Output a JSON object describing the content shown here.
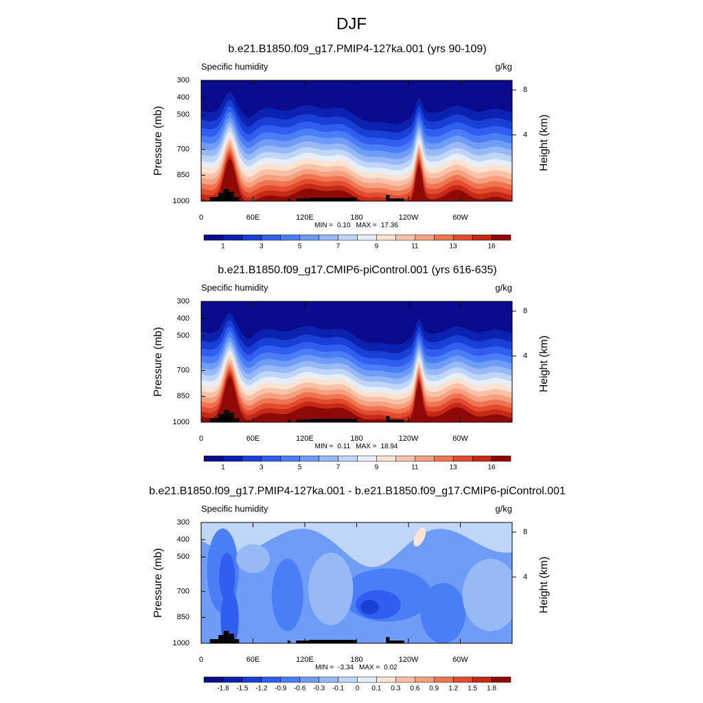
{
  "title": "DJF",
  "chart_data": [
    {
      "type": "contour",
      "title": "b.e21.B1850.f09_g17.PMIP4-127ka.001 (yrs 90-109)",
      "left_title": "Specific humidity",
      "right_title": "g/kg",
      "ylabel": "Pressure (mb)",
      "y2label": "Height (km)",
      "xlim": [
        0,
        360
      ],
      "xticks": [
        0,
        {
          "value": 60,
          "label": "60E"
        },
        {
          "value": 120,
          "label": "120E"
        },
        180,
        {
          "value": 240,
          "label": "120W"
        },
        {
          "value": 300,
          "label": "60W"
        }
      ],
      "ylim": [
        1000,
        300
      ],
      "yticks": [
        300,
        400,
        500,
        700,
        850,
        1000
      ],
      "y2ticks": [
        4,
        8
      ],
      "min_label": "MIN =",
      "min": {
        "value": 0.1,
        "label": "0.10"
      },
      "max_label": "MAX =",
      "max": 17.36,
      "colorbar": {
        "colors": [
          "#0a0a8c",
          "#0b22b0",
          "#1a3fd4",
          "#2f5ef0",
          "#4a7ef7",
          "#6e9cf7",
          "#97baf7",
          "#c0d6f8",
          "#e6eefa",
          "#fbe3d2",
          "#f9c2a8",
          "#f5a07e",
          "#ef7552",
          "#e34b2e",
          "#c52a17",
          "#8f0a06"
        ],
        "labels": [
          1,
          3,
          5,
          7,
          9,
          11,
          13,
          16
        ]
      }
    },
    {
      "type": "contour",
      "title": "b.e21.B1850.f09_g17.CMIP6-piControl.001 (yrs 616-635)",
      "left_title": "Specific humidity",
      "right_title": "g/kg",
      "ylabel": "Pressure (mb)",
      "y2label": "Height (km)",
      "xlim": [
        0,
        360
      ],
      "xticks": [
        0,
        {
          "value": 60,
          "label": "60E"
        },
        {
          "value": 120,
          "label": "120E"
        },
        180,
        {
          "value": 240,
          "label": "120W"
        },
        {
          "value": 300,
          "label": "60W"
        }
      ],
      "ylim": [
        1000,
        300
      ],
      "yticks": [
        300,
        400,
        500,
        700,
        850,
        1000
      ],
      "y2ticks": [
        4,
        8
      ],
      "min_label": "MIN =",
      "min": {
        "value": 0.11,
        "label": "0.11"
      },
      "max_label": "MAX =",
      "max": 18.94,
      "colorbar": {
        "colors": [
          "#0a0a8c",
          "#0b22b0",
          "#1a3fd4",
          "#2f5ef0",
          "#4a7ef7",
          "#6e9cf7",
          "#97baf7",
          "#c0d6f8",
          "#e6eefa",
          "#fbe3d2",
          "#f9c2a8",
          "#f5a07e",
          "#ef7552",
          "#e34b2e",
          "#c52a17",
          "#8f0a06"
        ],
        "labels": [
          1,
          3,
          5,
          7,
          9,
          11,
          13,
          16
        ]
      }
    },
    {
      "type": "contour",
      "title": "b.e21.B1850.f09_g17.PMIP4-127ka.001 - b.e21.B1850.f09_g17.CMIP6-piControl.001",
      "left_title": "Specific humidity",
      "right_title": "g/kg",
      "ylabel": "Pressure (mb)",
      "y2label": "Height (km)",
      "xlim": [
        0,
        360
      ],
      "xticks": [
        0,
        {
          "value": 60,
          "label": "60E"
        },
        {
          "value": 120,
          "label": "120E"
        },
        180,
        {
          "value": 240,
          "label": "120W"
        },
        {
          "value": 300,
          "label": "60W"
        }
      ],
      "ylim": [
        1000,
        300
      ],
      "yticks": [
        300,
        400,
        500,
        700,
        850,
        1000
      ],
      "y2ticks": [
        4,
        8
      ],
      "min_label": "MIN =",
      "min": -3.34,
      "max_label": "MAX =",
      "max": 0.02,
      "colorbar": {
        "colors": [
          "#0a0a8c",
          "#0b22b0",
          "#1a3fd4",
          "#2f5ef0",
          "#4a7ef7",
          "#6e9cf7",
          "#97baf7",
          "#c0d6f8",
          "#e6eefa",
          "#fbe3d2",
          "#f9c2a8",
          "#f5a07e",
          "#ef7552",
          "#e34b2e",
          "#c52a17",
          "#8f0a06"
        ],
        "labels": [
          -1.8,
          -1.5,
          -1.2,
          -0.9,
          -0.6,
          -0.3,
          -0.1,
          0,
          0.1,
          0.3,
          0.6,
          0.9,
          1.2,
          1.5,
          1.8
        ]
      }
    }
  ]
}
